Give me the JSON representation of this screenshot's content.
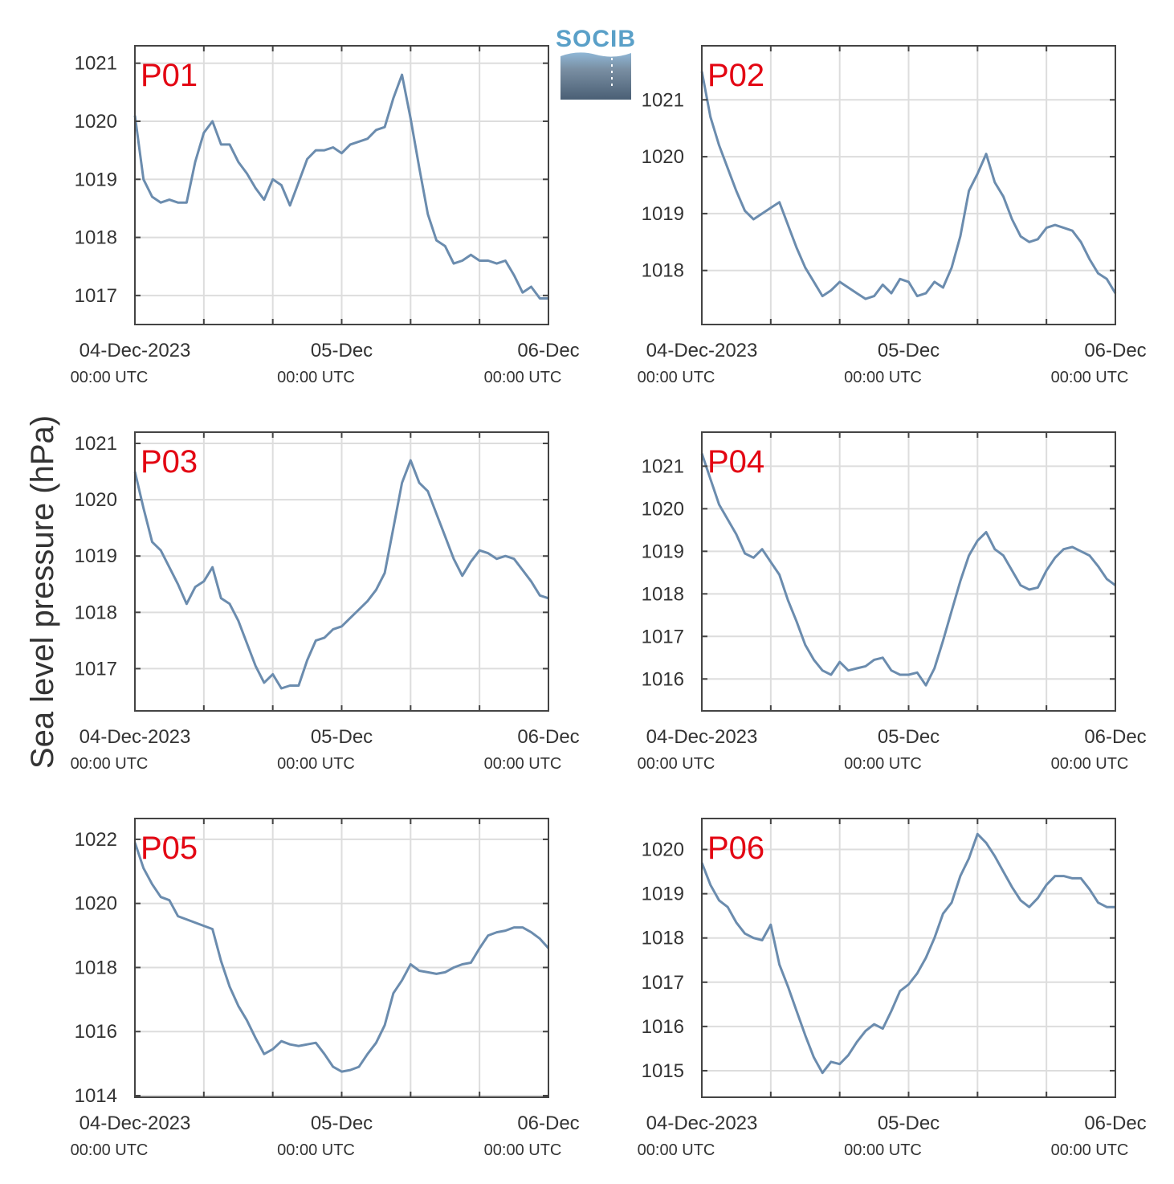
{
  "ylabel": "Sea level pressure (hPa)",
  "logo": {
    "text": "SOCIB"
  },
  "colors": {
    "line": "#6b8cae",
    "label": "#e30613",
    "grid": "#dddddd",
    "axis": "#444444"
  },
  "x_tick_labels": [
    {
      "t": 0,
      "main": "04-Dec-2023",
      "sub": "00:00 UTC"
    },
    {
      "t": 24,
      "main": "05-Dec",
      "sub": "00:00 UTC"
    },
    {
      "t": 48,
      "main": "06-Dec",
      "sub": "00:00 UTC"
    }
  ],
  "chart_data": [
    {
      "type": "line",
      "label": "P01",
      "x_unit": "hours since 04-Dec-2023 00:00 UTC",
      "xlim": [
        0,
        48
      ],
      "ylim": [
        1016.5,
        1021.3
      ],
      "yticks": [
        1017,
        1018,
        1019,
        1020,
        1021
      ],
      "x": [
        0,
        1,
        2,
        3,
        4,
        5,
        6,
        7,
        8,
        9,
        10,
        11,
        12,
        13,
        14,
        15,
        16,
        17,
        18,
        19,
        20,
        21,
        22,
        23,
        24,
        25,
        26,
        27,
        28,
        29,
        30,
        31,
        32,
        33,
        34,
        35,
        36,
        37,
        38,
        39,
        40,
        41,
        42,
        43,
        44,
        45,
        46,
        47,
        48
      ],
      "y": [
        1020.1,
        1019.0,
        1018.7,
        1018.6,
        1018.65,
        1018.6,
        1018.6,
        1019.3,
        1019.8,
        1020.0,
        1019.6,
        1019.6,
        1019.3,
        1019.1,
        1018.85,
        1018.65,
        1019.0,
        1018.9,
        1018.55,
        1018.95,
        1019.35,
        1019.5,
        1019.5,
        1019.55,
        1019.45,
        1019.6,
        1019.65,
        1019.7,
        1019.85,
        1019.9,
        1020.4,
        1020.8,
        1020.05,
        1019.2,
        1018.4,
        1017.95,
        1017.85,
        1017.55,
        1017.6,
        1017.7,
        1017.6,
        1017.6,
        1017.55,
        1017.6,
        1017.35,
        1017.05,
        1017.15,
        1016.95,
        1016.95
      ]
    },
    {
      "type": "line",
      "label": "P02",
      "x_unit": "hours since 04-Dec-2023 00:00 UTC",
      "xlim": [
        0,
        48
      ],
      "ylim": [
        1017.05,
        1021.95
      ],
      "yticks": [
        1018,
        1019,
        1020,
        1021
      ],
      "x": [
        0,
        1,
        2,
        3,
        4,
        5,
        6,
        7,
        8,
        9,
        10,
        11,
        12,
        13,
        14,
        15,
        16,
        17,
        18,
        19,
        20,
        21,
        22,
        23,
        24,
        25,
        26,
        27,
        28,
        29,
        30,
        31,
        32,
        33,
        34,
        35,
        36,
        37,
        38,
        39,
        40,
        41,
        42,
        43,
        44,
        45,
        46,
        47,
        48
      ],
      "y": [
        1021.5,
        1020.7,
        1020.2,
        1019.8,
        1019.4,
        1019.05,
        1018.9,
        1019.0,
        1019.1,
        1019.2,
        1018.8,
        1018.4,
        1018.05,
        1017.8,
        1017.55,
        1017.65,
        1017.8,
        1017.7,
        1017.6,
        1017.5,
        1017.55,
        1017.75,
        1017.6,
        1017.85,
        1017.8,
        1017.55,
        1017.6,
        1017.8,
        1017.7,
        1018.05,
        1018.6,
        1019.4,
        1019.7,
        1020.05,
        1019.55,
        1019.3,
        1018.9,
        1018.6,
        1018.5,
        1018.55,
        1018.75,
        1018.8,
        1018.75,
        1018.7,
        1018.5,
        1018.2,
        1017.95,
        1017.85,
        1017.6
      ]
    },
    {
      "type": "line",
      "label": "P03",
      "x_unit": "hours since 04-Dec-2023 00:00 UTC",
      "xlim": [
        0,
        48
      ],
      "ylim": [
        1016.25,
        1021.2
      ],
      "yticks": [
        1017,
        1018,
        1019,
        1020,
        1021
      ],
      "x": [
        0,
        1,
        2,
        3,
        4,
        5,
        6,
        7,
        8,
        9,
        10,
        11,
        12,
        13,
        14,
        15,
        16,
        17,
        18,
        19,
        20,
        21,
        22,
        23,
        24,
        25,
        26,
        27,
        28,
        29,
        30,
        31,
        32,
        33,
        34,
        35,
        36,
        37,
        38,
        39,
        40,
        41,
        42,
        43,
        44,
        45,
        46,
        47,
        48
      ],
      "y": [
        1020.5,
        1019.85,
        1019.25,
        1019.1,
        1018.8,
        1018.5,
        1018.15,
        1018.45,
        1018.55,
        1018.8,
        1018.25,
        1018.15,
        1017.85,
        1017.45,
        1017.05,
        1016.75,
        1016.9,
        1016.65,
        1016.7,
        1016.7,
        1017.15,
        1017.5,
        1017.55,
        1017.7,
        1017.75,
        1017.9,
        1018.05,
        1018.2,
        1018.4,
        1018.7,
        1019.5,
        1020.3,
        1020.7,
        1020.3,
        1020.15,
        1019.75,
        1019.35,
        1018.95,
        1018.65,
        1018.9,
        1019.1,
        1019.05,
        1018.95,
        1019.0,
        1018.95,
        1018.75,
        1018.55,
        1018.3,
        1018.25
      ]
    },
    {
      "type": "line",
      "label": "P04",
      "x_unit": "hours since 04-Dec-2023 00:00 UTC",
      "xlim": [
        0,
        48
      ],
      "ylim": [
        1015.25,
        1021.8
      ],
      "yticks": [
        1016,
        1017,
        1018,
        1019,
        1020,
        1021
      ],
      "x": [
        0,
        1,
        2,
        3,
        4,
        5,
        6,
        7,
        8,
        9,
        10,
        11,
        12,
        13,
        14,
        15,
        16,
        17,
        18,
        19,
        20,
        21,
        22,
        23,
        24,
        25,
        26,
        27,
        28,
        29,
        30,
        31,
        32,
        33,
        34,
        35,
        36,
        37,
        38,
        39,
        40,
        41,
        42,
        43,
        44,
        45,
        46,
        47,
        48
      ],
      "y": [
        1021.3,
        1020.7,
        1020.1,
        1019.75,
        1019.4,
        1018.95,
        1018.85,
        1019.05,
        1018.75,
        1018.45,
        1017.85,
        1017.35,
        1016.8,
        1016.45,
        1016.2,
        1016.1,
        1016.4,
        1016.2,
        1016.25,
        1016.3,
        1016.45,
        1016.5,
        1016.2,
        1016.1,
        1016.1,
        1016.15,
        1015.85,
        1016.25,
        1016.9,
        1017.6,
        1018.3,
        1018.9,
        1019.25,
        1019.45,
        1019.05,
        1018.9,
        1018.55,
        1018.2,
        1018.1,
        1018.15,
        1018.55,
        1018.85,
        1019.05,
        1019.1,
        1019.0,
        1018.9,
        1018.65,
        1018.35,
        1018.2
      ]
    },
    {
      "type": "line",
      "label": "P05",
      "x_unit": "hours since 04-Dec-2023 00:00 UTC",
      "xlim": [
        0,
        48
      ],
      "ylim": [
        1013.95,
        1022.65
      ],
      "yticks": [
        1014,
        1016,
        1018,
        1020,
        1022
      ],
      "x": [
        0,
        1,
        2,
        3,
        4,
        5,
        6,
        7,
        8,
        9,
        10,
        11,
        12,
        13,
        14,
        15,
        16,
        17,
        18,
        19,
        20,
        21,
        22,
        23,
        24,
        25,
        26,
        27,
        28,
        29,
        30,
        31,
        32,
        33,
        34,
        35,
        36,
        37,
        38,
        39,
        40,
        41,
        42,
        43,
        44,
        45,
        46,
        47,
        48
      ],
      "y": [
        1021.9,
        1021.1,
        1020.6,
        1020.2,
        1020.1,
        1019.6,
        1019.5,
        1019.4,
        1019.3,
        1019.2,
        1018.2,
        1017.4,
        1016.8,
        1016.35,
        1015.8,
        1015.3,
        1015.45,
        1015.7,
        1015.6,
        1015.55,
        1015.6,
        1015.65,
        1015.3,
        1014.9,
        1014.75,
        1014.8,
        1014.9,
        1015.3,
        1015.65,
        1016.2,
        1017.2,
        1017.6,
        1018.1,
        1017.9,
        1017.85,
        1017.8,
        1017.85,
        1018.0,
        1018.1,
        1018.15,
        1018.6,
        1019.0,
        1019.1,
        1019.15,
        1019.25,
        1019.25,
        1019.1,
        1018.9,
        1018.6
      ]
    },
    {
      "type": "line",
      "label": "P06",
      "x_unit": "hours since 04-Dec-2023 00:00 UTC",
      "xlim": [
        0,
        48
      ],
      "ylim": [
        1014.4,
        1020.7
      ],
      "yticks": [
        1015,
        1016,
        1017,
        1018,
        1019,
        1020
      ],
      "x": [
        0,
        1,
        2,
        3,
        4,
        5,
        6,
        7,
        8,
        9,
        10,
        11,
        12,
        13,
        14,
        15,
        16,
        17,
        18,
        19,
        20,
        21,
        22,
        23,
        24,
        25,
        26,
        27,
        28,
        29,
        30,
        31,
        32,
        33,
        34,
        35,
        36,
        37,
        38,
        39,
        40,
        41,
        42,
        43,
        44,
        45,
        46,
        47,
        48
      ],
      "y": [
        1019.7,
        1019.2,
        1018.85,
        1018.7,
        1018.35,
        1018.1,
        1018.0,
        1017.95,
        1018.3,
        1017.4,
        1016.9,
        1016.35,
        1015.8,
        1015.3,
        1014.95,
        1015.2,
        1015.15,
        1015.35,
        1015.65,
        1015.9,
        1016.05,
        1015.95,
        1016.35,
        1016.8,
        1016.95,
        1017.2,
        1017.55,
        1018.0,
        1018.55,
        1018.8,
        1019.4,
        1019.8,
        1020.35,
        1020.15,
        1019.85,
        1019.5,
        1019.15,
        1018.85,
        1018.7,
        1018.9,
        1019.2,
        1019.4,
        1019.4,
        1019.35,
        1019.35,
        1019.1,
        1018.8,
        1018.7,
        1018.7
      ]
    }
  ]
}
